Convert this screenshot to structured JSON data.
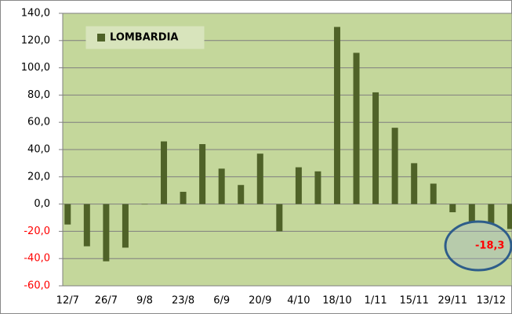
{
  "chart_data": {
    "type": "bar",
    "legend": "LOMBARDIA",
    "annotation": "-18,3",
    "categories": [
      "12/7",
      null,
      "26/7",
      null,
      "9/8",
      null,
      "23/8",
      null,
      "6/9",
      null,
      "20/9",
      null,
      "4/10",
      null,
      "18/10",
      null,
      "1/11",
      null,
      "15/11",
      null,
      "29/11",
      null,
      "13/12",
      null
    ],
    "values": [
      -15,
      -31,
      -42,
      -32,
      0,
      46,
      9,
      44,
      26,
      14,
      37,
      -20,
      27,
      24,
      130,
      111,
      82,
      56,
      30,
      15,
      -6,
      -13,
      -14,
      -18.3
    ],
    "color": "#4f6228",
    "negative_tick_color": "#ff0000",
    "annotation_color": "#ff0000",
    "ylim": [
      -60,
      140
    ],
    "yticks": [
      {
        "value": -60,
        "label": "-60,0"
      },
      {
        "value": -40,
        "label": "-40,0"
      },
      {
        "value": -20,
        "label": "-20,0"
      },
      {
        "value": 0,
        "label": "0,0"
      },
      {
        "value": 20,
        "label": "20,0"
      },
      {
        "value": 40,
        "label": "40,0"
      },
      {
        "value": 60,
        "label": "60,0"
      },
      {
        "value": 80,
        "label": "80,0"
      },
      {
        "value": 100,
        "label": "100,0"
      },
      {
        "value": 120,
        "label": "120,0"
      },
      {
        "value": 140,
        "label": "140,0"
      }
    ],
    "grid": true
  }
}
